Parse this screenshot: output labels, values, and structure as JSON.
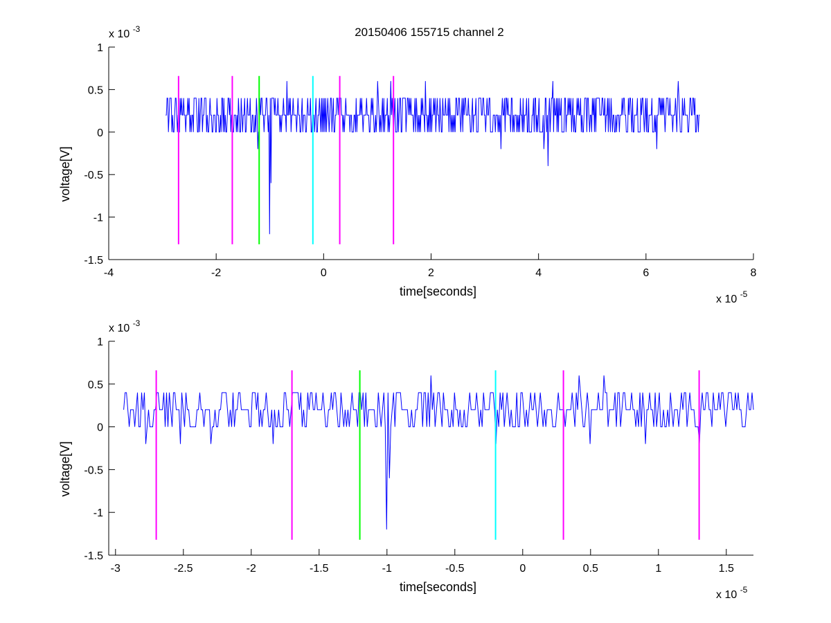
{
  "title": "20150406 155715 channel 2",
  "colors": {
    "signal": "#0000ff",
    "magenta": "#ff00ff",
    "green": "#00ff00",
    "cyan": "#00ffff"
  },
  "chart_data": [
    {
      "type": "line",
      "title": "20150406 155715 channel 2",
      "xlabel": "time[seconds]",
      "ylabel": "voltage[V]",
      "x_scale_label": "x 10",
      "x_scale_exp": "-5",
      "y_scale_label": "x 10",
      "y_scale_exp": "-3",
      "xlim": [
        -4,
        8
      ],
      "ylim": [
        -1.5,
        1
      ],
      "x_ticks": [
        -4,
        -2,
        0,
        2,
        4,
        6,
        8
      ],
      "x_tick_labels": [
        "-4",
        "-2",
        "0",
        "2",
        "4",
        "6",
        "8"
      ],
      "y_ticks": [
        1,
        0.5,
        0,
        -0.5,
        -1,
        -1.5
      ],
      "y_tick_labels": [
        "1",
        "0.5",
        "0",
        "-0.5",
        "-1",
        "-1.5"
      ],
      "grid": false,
      "series": [
        {
          "color": "#0000ff",
          "x_range": [
            -2.94,
            7.0
          ],
          "baseline": 0.2,
          "levels": [
            0,
            0.2,
            0.4
          ],
          "spikes": [
            {
              "x": -1.23,
              "y": -0.2
            },
            {
              "x": -1.0,
              "y": -1.2
            },
            {
              "x": -0.98,
              "y": -0.6
            },
            {
              "x": -0.68,
              "y": 0.6
            },
            {
              "x": 1.0,
              "y": 0.6
            },
            {
              "x": 1.25,
              "y": 0.6
            },
            {
              "x": 1.9,
              "y": 0.6
            },
            {
              "x": 4.1,
              "y": -0.2
            },
            {
              "x": 4.18,
              "y": -0.4
            },
            {
              "x": 4.27,
              "y": 0.6
            },
            {
              "x": 6.6,
              "y": 0.6
            },
            {
              "x": 6.2,
              "y": -0.2
            },
            {
              "x": 3.3,
              "y": -0.2
            }
          ]
        }
      ],
      "markers": [
        {
          "x": -2.7,
          "y_top": 0.66,
          "y_bottom": -1.32,
          "color": "#ff00ff"
        },
        {
          "x": -1.7,
          "y_top": 0.66,
          "y_bottom": -1.32,
          "color": "#ff00ff"
        },
        {
          "x": -1.2,
          "y_top": 0.66,
          "y_bottom": -1.32,
          "color": "#00ff00"
        },
        {
          "x": -0.2,
          "y_top": 0.66,
          "y_bottom": -1.32,
          "color": "#00ffff"
        },
        {
          "x": 0.3,
          "y_top": 0.66,
          "y_bottom": -1.32,
          "color": "#ff00ff"
        },
        {
          "x": 1.3,
          "y_top": 0.66,
          "y_bottom": -1.32,
          "color": "#ff00ff"
        }
      ]
    },
    {
      "type": "line",
      "title": "",
      "xlabel": "time[seconds]",
      "ylabel": "voltage[V]",
      "x_scale_label": "x 10",
      "x_scale_exp": "-5",
      "y_scale_label": "x 10",
      "y_scale_exp": "-3",
      "xlim": [
        -3.05,
        1.7
      ],
      "ylim": [
        -1.5,
        1
      ],
      "x_ticks": [
        -3,
        -2.5,
        -2,
        -1.5,
        -1,
        -0.5,
        0,
        0.5,
        1,
        1.5
      ],
      "x_tick_labels": [
        "-3",
        "-2.5",
        "-2",
        "-1.5",
        "-1",
        "-0.5",
        "0",
        "0.5",
        "1",
        "1.5"
      ],
      "y_ticks": [
        1,
        0.5,
        0,
        -0.5,
        -1,
        -1.5
      ],
      "y_tick_labels": [
        "1",
        "0.5",
        "0",
        "-0.5",
        "-1",
        "-1.5"
      ],
      "grid": false,
      "series": [
        {
          "color": "#0000ff",
          "x_range": [
            -2.94,
            1.7
          ],
          "baseline": 0.2,
          "levels": [
            0,
            0.2,
            0.4
          ],
          "spikes": [
            {
              "x": -2.78,
              "y": -0.2
            },
            {
              "x": -2.52,
              "y": -0.2
            },
            {
              "x": -2.3,
              "y": -0.2
            },
            {
              "x": -1.84,
              "y": -0.2
            },
            {
              "x": -1.0,
              "y": -1.2
            },
            {
              "x": -0.98,
              "y": -0.6
            },
            {
              "x": -0.68,
              "y": 0.6
            },
            {
              "x": -0.2,
              "y": -0.2
            },
            {
              "x": 0.42,
              "y": 0.6
            },
            {
              "x": 0.5,
              "y": -0.2
            },
            {
              "x": 0.6,
              "y": 0.6
            },
            {
              "x": 0.9,
              "y": -0.2
            },
            {
              "x": 1.3,
              "y": -0.2
            }
          ]
        }
      ],
      "markers": [
        {
          "x": -2.7,
          "y_top": 0.66,
          "y_bottom": -1.32,
          "color": "#ff00ff"
        },
        {
          "x": -1.7,
          "y_top": 0.66,
          "y_bottom": -1.32,
          "color": "#ff00ff"
        },
        {
          "x": -1.2,
          "y_top": 0.66,
          "y_bottom": -1.32,
          "color": "#00ff00"
        },
        {
          "x": -0.2,
          "y_top": 0.66,
          "y_bottom": -1.32,
          "color": "#00ffff"
        },
        {
          "x": 0.3,
          "y_top": 0.66,
          "y_bottom": -1.32,
          "color": "#ff00ff"
        },
        {
          "x": 1.3,
          "y_top": 0.66,
          "y_bottom": -1.32,
          "color": "#ff00ff"
        }
      ]
    }
  ]
}
